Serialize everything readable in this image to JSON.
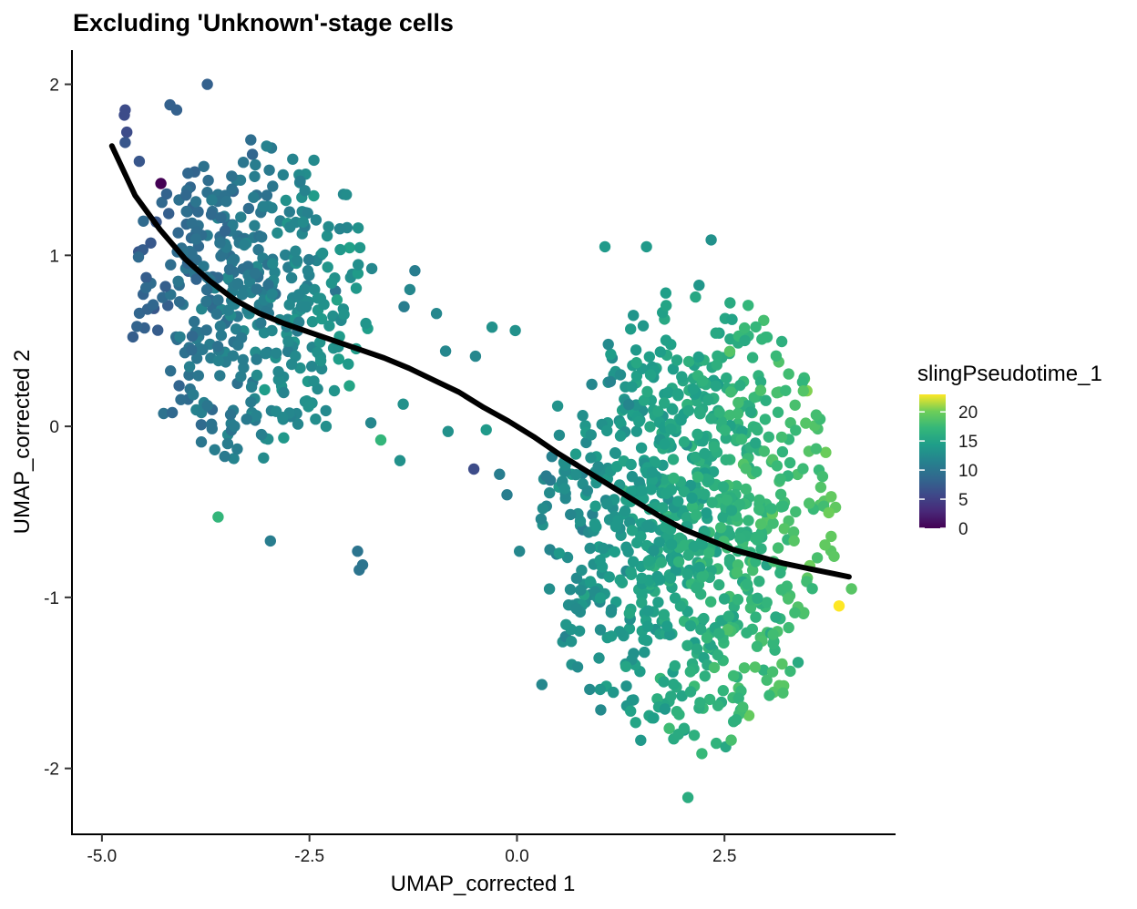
{
  "chart_data": {
    "type": "scatter",
    "title": "Excluding 'Unknown'-stage cells",
    "xlabel": "UMAP_corrected 1",
    "ylabel": "UMAP_corrected 2",
    "xlim": [
      -5.35,
      4.55
    ],
    "ylim": [
      -2.38,
      2.2
    ],
    "x_ticks": [
      -5.0,
      -2.5,
      0.0,
      2.5
    ],
    "x_tick_labels": [
      "-5.0",
      "-2.5",
      "0.0",
      "2.5"
    ],
    "y_ticks": [
      -2,
      -1,
      0,
      1,
      2
    ],
    "y_tick_labels": [
      "-2",
      "-1",
      "0",
      "1",
      "2"
    ],
    "grid": false,
    "color_variable": "slingPseudotime_1",
    "color_scale": "viridis",
    "color_range": [
      0,
      23
    ],
    "legend": {
      "title": "slingPseudotime_1",
      "position": "right",
      "ticks": [
        0,
        5,
        10,
        15,
        20
      ],
      "tick_labels": [
        "0",
        "5",
        "10",
        "15",
        "20"
      ]
    },
    "point_size_note": "marker glyph only",
    "curve": {
      "color": "#000000",
      "points": [
        [
          -4.88,
          1.64
        ],
        [
          -4.6,
          1.35
        ],
        [
          -4.3,
          1.15
        ],
        [
          -4.0,
          0.98
        ],
        [
          -3.7,
          0.85
        ],
        [
          -3.4,
          0.74
        ],
        [
          -3.1,
          0.66
        ],
        [
          -2.8,
          0.6
        ],
        [
          -2.5,
          0.55
        ],
        [
          -2.2,
          0.5
        ],
        [
          -1.9,
          0.45
        ],
        [
          -1.6,
          0.4
        ],
        [
          -1.3,
          0.34
        ],
        [
          -1.0,
          0.27
        ],
        [
          -0.7,
          0.2
        ],
        [
          -0.4,
          0.11
        ],
        [
          -0.1,
          0.03
        ],
        [
          0.2,
          -0.06
        ],
        [
          0.5,
          -0.16
        ],
        [
          0.8,
          -0.25
        ],
        [
          1.1,
          -0.34
        ],
        [
          1.4,
          -0.43
        ],
        [
          1.7,
          -0.52
        ],
        [
          2.0,
          -0.6
        ],
        [
          2.3,
          -0.66
        ],
        [
          2.6,
          -0.72
        ],
        [
          2.9,
          -0.76
        ],
        [
          3.2,
          -0.8
        ],
        [
          3.5,
          -0.83
        ],
        [
          3.8,
          -0.86
        ],
        [
          4.0,
          -0.88
        ]
      ]
    },
    "clusters": [
      {
        "name": "upper-left group",
        "cx": -3.2,
        "cy": 0.75,
        "rx": 1.45,
        "ry": 0.95,
        "n": 420,
        "pt_min": 8,
        "pt_max": 14
      },
      {
        "name": "lower-right group",
        "cx": 2.05,
        "cy": -0.55,
        "rx": 1.75,
        "ry": 1.35,
        "n": 900,
        "pt_min": 12,
        "pt_max": 19
      }
    ],
    "points": [
      {
        "x": -4.72,
        "y": 1.85,
        "t": 6
      },
      {
        "x": -4.73,
        "y": 1.82,
        "t": 6
      },
      {
        "x": -4.7,
        "y": 1.72,
        "t": 6
      },
      {
        "x": -4.72,
        "y": 1.66,
        "t": 7
      },
      {
        "x": -4.29,
        "y": 1.42,
        "t": 0
      },
      {
        "x": -3.73,
        "y": 2.0,
        "t": 8
      },
      {
        "x": -4.18,
        "y": 1.88,
        "t": 8
      },
      {
        "x": -4.1,
        "y": 1.85,
        "t": 8
      },
      {
        "x": -4.55,
        "y": 1.55,
        "t": 7
      },
      {
        "x": -4.5,
        "y": 1.2,
        "t": 9
      },
      {
        "x": -4.56,
        "y": 0.99,
        "t": 9
      },
      {
        "x": -4.47,
        "y": 0.81,
        "t": 9
      },
      {
        "x": -3.6,
        "y": -0.53,
        "t": 17
      },
      {
        "x": -2.97,
        "y": -0.67,
        "t": 11
      },
      {
        "x": -1.92,
        "y": -0.73,
        "t": 10
      },
      {
        "x": -1.9,
        "y": -0.84,
        "t": 10
      },
      {
        "x": -1.86,
        "y": -0.81,
        "t": 10
      },
      {
        "x": -0.52,
        "y": -0.25,
        "t": 6
      },
      {
        "x": -0.21,
        "y": -0.28,
        "t": 11
      },
      {
        "x": -0.12,
        "y": -0.4,
        "t": 11
      },
      {
        "x": 0.03,
        "y": -0.73,
        "t": 12
      },
      {
        "x": 0.3,
        "y": -1.51,
        "t": 12
      },
      {
        "x": 1.06,
        "y": 1.05,
        "t": 14
      },
      {
        "x": 1.56,
        "y": 1.05,
        "t": 14
      },
      {
        "x": 2.34,
        "y": 1.09,
        "t": 13
      },
      {
        "x": 2.06,
        "y": -2.17,
        "t": 16
      },
      {
        "x": 3.88,
        "y": -1.05,
        "t": 23
      },
      {
        "x": 4.03,
        "y": -0.95,
        "t": 19
      },
      {
        "x": -1.41,
        "y": -0.2,
        "t": 13
      },
      {
        "x": -1.37,
        "y": 0.13,
        "t": 13
      },
      {
        "x": -0.83,
        "y": -0.03,
        "t": 13
      },
      {
        "x": -0.37,
        "y": -0.02,
        "t": 14
      },
      {
        "x": -0.5,
        "y": 0.41,
        "t": 12
      },
      {
        "x": -0.3,
        "y": 0.58,
        "t": 13
      },
      {
        "x": -0.02,
        "y": 0.56,
        "t": 13
      },
      {
        "x": -1.64,
        "y": -0.08,
        "t": 17
      },
      {
        "x": -1.76,
        "y": 0.02,
        "t": 12
      },
      {
        "x": -0.86,
        "y": 0.44,
        "t": 12
      },
      {
        "x": -0.97,
        "y": 0.66,
        "t": 12
      },
      {
        "x": -1.29,
        "y": 0.8,
        "t": 12
      },
      {
        "x": -1.23,
        "y": 0.91,
        "t": 11
      },
      {
        "x": -1.36,
        "y": 0.7,
        "t": 11
      }
    ]
  }
}
